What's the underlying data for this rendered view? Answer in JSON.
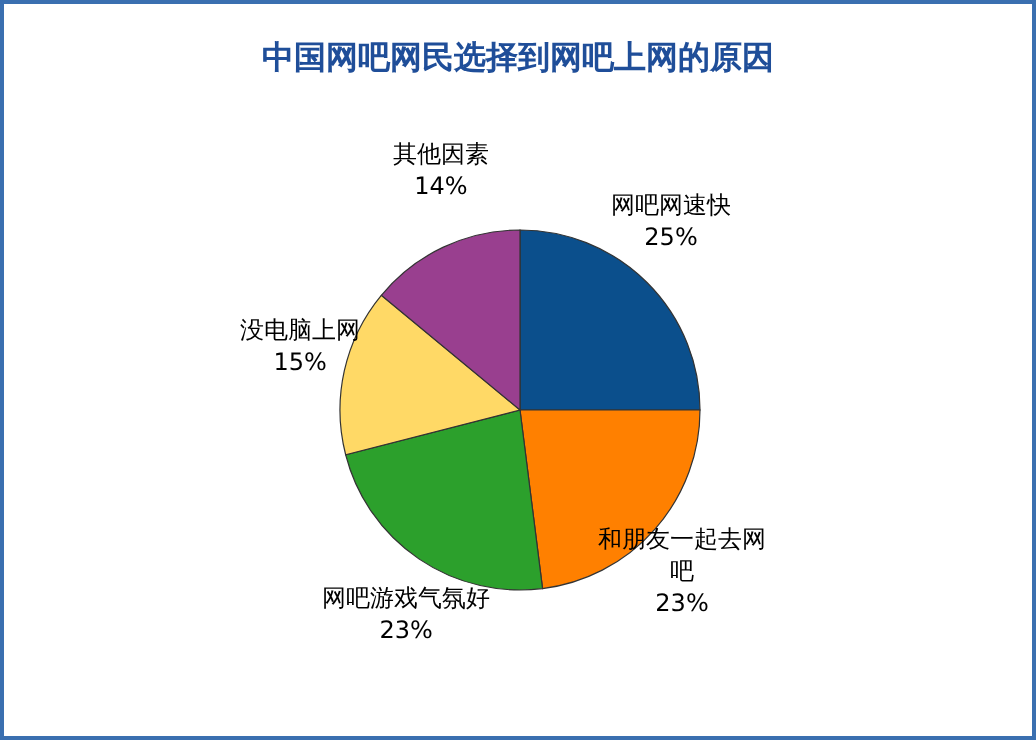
{
  "chart_data": {
    "type": "pie",
    "title": "中国网吧网民选择到网吧上网的原因",
    "categories": [
      "网吧网速快",
      "和朋友一起去网吧",
      "网吧游戏气氛好",
      "没电脑上网",
      "其他因素"
    ],
    "values": [
      25,
      23,
      23,
      15,
      14
    ],
    "value_labels": [
      "25%",
      "23%",
      "23%",
      "15%",
      "14%"
    ],
    "colors": [
      "#0b4f8c",
      "#ff8000",
      "#2ca02c",
      "#ffd966",
      "#993f8f"
    ]
  }
}
